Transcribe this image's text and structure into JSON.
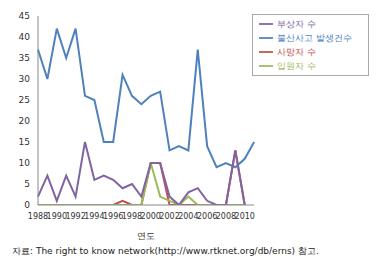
{
  "chart_data": {
    "type": "line",
    "x_label": "연도",
    "source": "자료: The right to know network(http://www.rtknet.org/db/erns) 참고.",
    "categories": [
      "1988",
      null,
      "1990",
      null,
      "1992",
      null,
      "1994",
      null,
      "1996",
      null,
      "1998",
      null,
      "2000",
      null,
      "2002",
      null,
      "2004",
      null,
      "2006",
      null,
      "2008",
      null,
      "2010",
      null
    ],
    "series": [
      {
        "name": "불산사고 발생건수",
        "color": "#4f81bd",
        "values": [
          37,
          30,
          42,
          35,
          42,
          26,
          25,
          15,
          15,
          31,
          26,
          24,
          26,
          27,
          13,
          14,
          13,
          37,
          14,
          9,
          10,
          9,
          11,
          15
        ]
      },
      {
        "name": "사망자 수",
        "color": "#c0504d",
        "values": [
          0,
          0,
          0,
          0,
          0,
          0,
          0,
          0,
          0,
          1,
          0,
          0,
          10,
          10,
          0,
          0,
          0,
          0,
          0,
          0,
          0,
          13,
          0,
          null
        ]
      },
      {
        "name": "입원자 수",
        "color": "#9bbb59",
        "values": [
          0,
          0,
          0,
          0,
          0,
          0,
          0,
          0,
          0,
          0,
          0,
          0,
          10,
          2,
          1,
          0,
          2,
          0,
          0,
          0,
          0,
          0,
          0,
          null
        ]
      },
      {
        "name": "부상자 수",
        "color": "#8064a2",
        "values": [
          2,
          7,
          1,
          7,
          2,
          15,
          6,
          7,
          6,
          4,
          5,
          2,
          10,
          10,
          2,
          0,
          3,
          4,
          1,
          0,
          0,
          13,
          0,
          null
        ]
      }
    ],
    "ylim": [
      0,
      45
    ],
    "yticks": [
      0,
      5,
      10,
      15,
      20,
      25,
      30,
      35,
      40,
      45
    ],
    "legend": "top-right"
  }
}
